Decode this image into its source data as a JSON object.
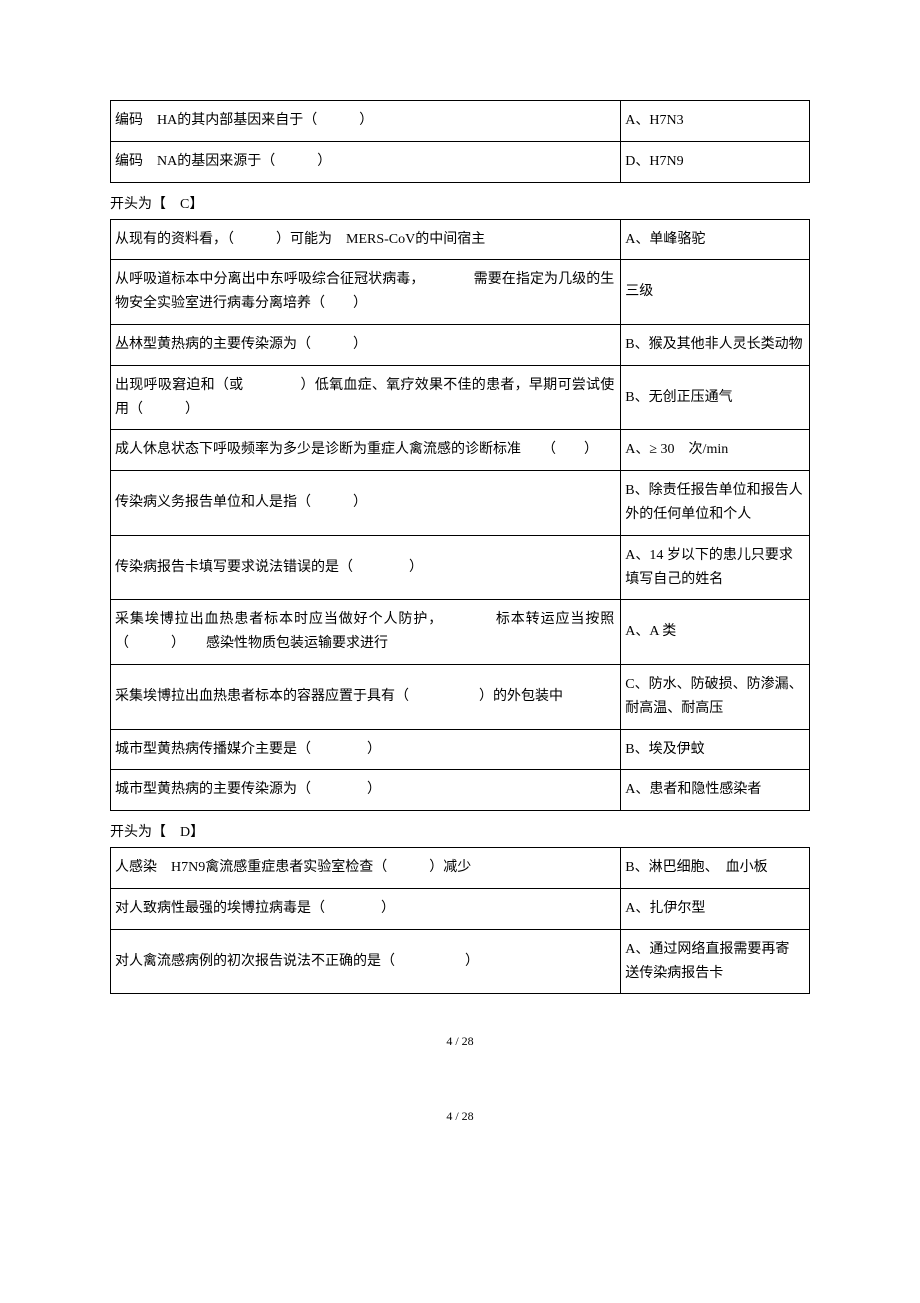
{
  "tables": {
    "top": {
      "rows": [
        {
          "q": "编码　HA的其内部基因来自于（　　　）",
          "a": "A、H7N3"
        },
        {
          "q": "编码　NA的基因来源于（　　　）",
          "a": "D、H7N9"
        }
      ]
    },
    "c": {
      "heading": "开头为【　C】",
      "rows": [
        {
          "q": "从现有的资料看，（　　　）可能为　MERS-CoV的中间宿主",
          "a": "A、单峰骆驼"
        },
        {
          "q": "从呼吸道标本中分离出中东呼吸综合征冠状病毒，　　　　需要在指定为几级的生物安全实验室进行病毒分离培养（　　）",
          "a": "三级"
        },
        {
          "q": "丛林型黄热病的主要传染源为（　　　）",
          "a": "B、猴及其他非人灵长类动物"
        },
        {
          "q": "出现呼吸窘迫和（或　　　　）低氧血症、氧疗效果不佳的患者，早期可尝试使用（　　　）",
          "a": "B、无创正压通气"
        },
        {
          "q": "成人休息状态下呼吸频率为多少是诊断为重症人禽流感的诊断标准　　（　　）",
          "a": "A、≥ 30　次/min"
        },
        {
          "q": "传染病义务报告单位和人是指（　　　）",
          "a": "B、除责任报告单位和报告人外的任何单位和个人"
        },
        {
          "q": "传染病报告卡填写要求说法错误的是（　　　　）",
          "a": "A、14 岁以下的患儿只要求填写自己的姓名"
        },
        {
          "q": "采集埃博拉出血热患者标本时应当做好个人防护，　　　　标本转运应当按照（　　　）　　感染性物质包装运输要求进行",
          "a": "A、A 类"
        },
        {
          "q": "采集埃博拉出血热患者标本的容器应置于具有（　　　　　）的外包装中",
          "a": "C、防水、防破损、防渗漏、耐高温、耐高压"
        },
        {
          "q": "城市型黄热病传播媒介主要是（　　　　）",
          "a": "B、埃及伊蚊"
        },
        {
          "q": "城市型黄热病的主要传染源为（　　　　）",
          "a": "A、患者和隐性感染者"
        }
      ]
    },
    "d": {
      "heading": "开头为【　D】",
      "rows": [
        {
          "q": "人感染　H7N9禽流感重症患者实验室检查（　　　）减少",
          "a": "B、淋巴细胞、　血小板"
        },
        {
          "q": "对人致病性最强的埃博拉病毒是（　　　　）",
          "a": "A、扎伊尔型"
        },
        {
          "q": "对人禽流感病例的初次报告说法不正确的是（　　　　　）",
          "a": "A、通过网络直报需要再寄送传染病报告卡"
        }
      ]
    }
  },
  "footer": {
    "page": "4 / 28"
  }
}
